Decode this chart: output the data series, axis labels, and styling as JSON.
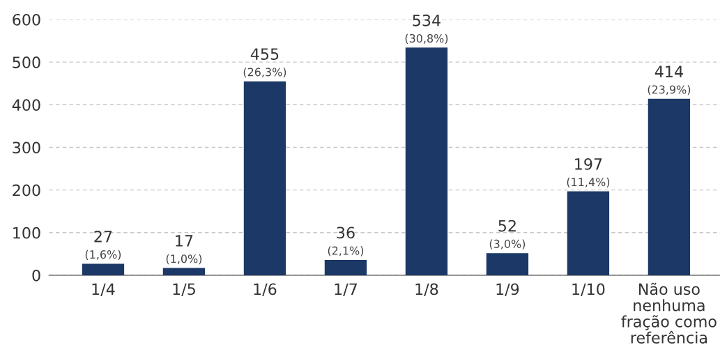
{
  "chart_data": {
    "type": "bar",
    "categories": [
      "1/4",
      "1/5",
      "1/6",
      "1/7",
      "1/8",
      "1/9",
      "1/10",
      "Não uso\nnenhuma\nfração como\nreferência"
    ],
    "values": [
      27,
      17,
      455,
      36,
      534,
      52,
      197,
      414
    ],
    "color": "#1b3866",
    "ylim": [
      0,
      600
    ],
    "yticks": [
      0,
      100,
      200,
      300,
      400,
      500,
      600
    ],
    "grid": "y",
    "data_labels": true,
    "annotations": [
      {
        "text": "(1,6%)",
        "x": "1/4",
        "y": 27
      },
      {
        "text": "(1,0%)",
        "x": "1/5",
        "y": 17
      },
      {
        "text": "(26,3%)",
        "x": "1/6",
        "y": 455
      },
      {
        "text": "(2,1%)",
        "x": "1/7",
        "y": 36
      },
      {
        "text": "(30,8%)",
        "x": "1/8",
        "y": 534
      },
      {
        "text": "(3,0%)",
        "x": "1/9",
        "y": 52
      },
      {
        "text": "(11,4%)",
        "x": "1/10",
        "y": 197
      },
      {
        "text": "(23,9%)",
        "x": "Não uso\nnenhuma\nfração como\nreferência",
        "y": 414
      }
    ]
  }
}
